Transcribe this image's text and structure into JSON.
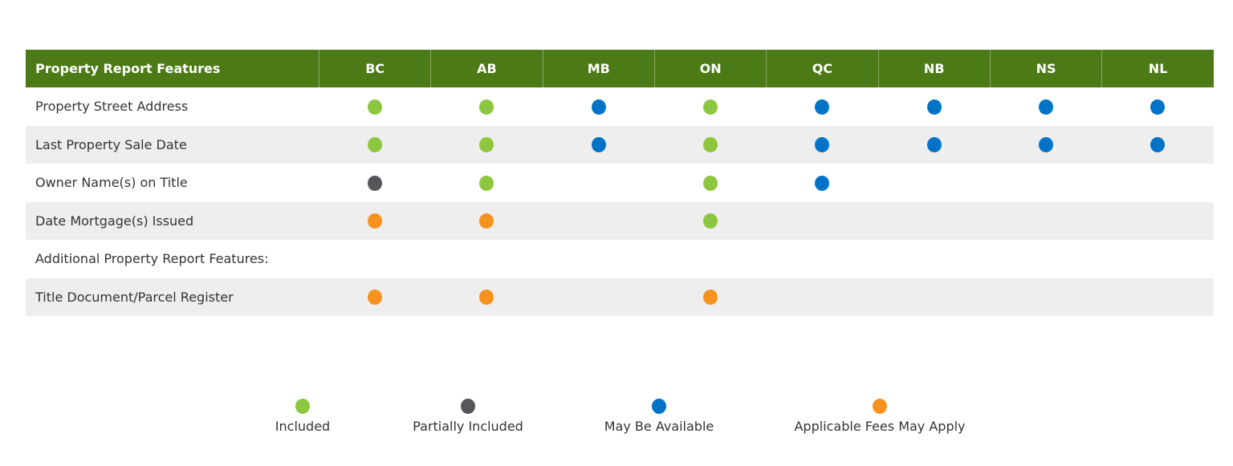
{
  "colors": {
    "header": "#4c7a16",
    "included": "#8dc63f",
    "partial": "#55565a",
    "may": "#0073c8",
    "fees": "#f7921e"
  },
  "table": {
    "headers": [
      "Property Report Features",
      "BC",
      "AB",
      "MB",
      "ON",
      "QC",
      "NB",
      "NS",
      "NL"
    ],
    "rows": [
      {
        "label": "Property Street Address",
        "cells": [
          "included",
          "included",
          "may",
          "included",
          "may",
          "may",
          "may",
          "may"
        ]
      },
      {
        "label": "Last Property Sale Date",
        "cells": [
          "included",
          "included",
          "may",
          "included",
          "may",
          "may",
          "may",
          "may"
        ]
      },
      {
        "label": "Owner Name(s) on Title",
        "cells": [
          "partial",
          "included",
          "",
          "included",
          "may",
          "",
          "",
          ""
        ]
      },
      {
        "label": "Date Mortgage(s) Issued",
        "cells": [
          "fees",
          "fees",
          "",
          "included",
          "",
          "",
          "",
          ""
        ]
      },
      {
        "label": "Additional Property Report Features:",
        "cells": [
          "",
          "",
          "",
          "",
          "",
          "",
          "",
          ""
        ]
      },
      {
        "label": "Title Document/Parcel Register",
        "cells": [
          "fees",
          "fees",
          "",
          "fees",
          "",
          "",
          "",
          ""
        ]
      }
    ]
  },
  "legend": [
    {
      "key": "included",
      "label": "Included"
    },
    {
      "key": "partial",
      "label": "Partially Included"
    },
    {
      "key": "may",
      "label": "May Be Available"
    },
    {
      "key": "fees",
      "label": "Applicable Fees May Apply"
    }
  ]
}
